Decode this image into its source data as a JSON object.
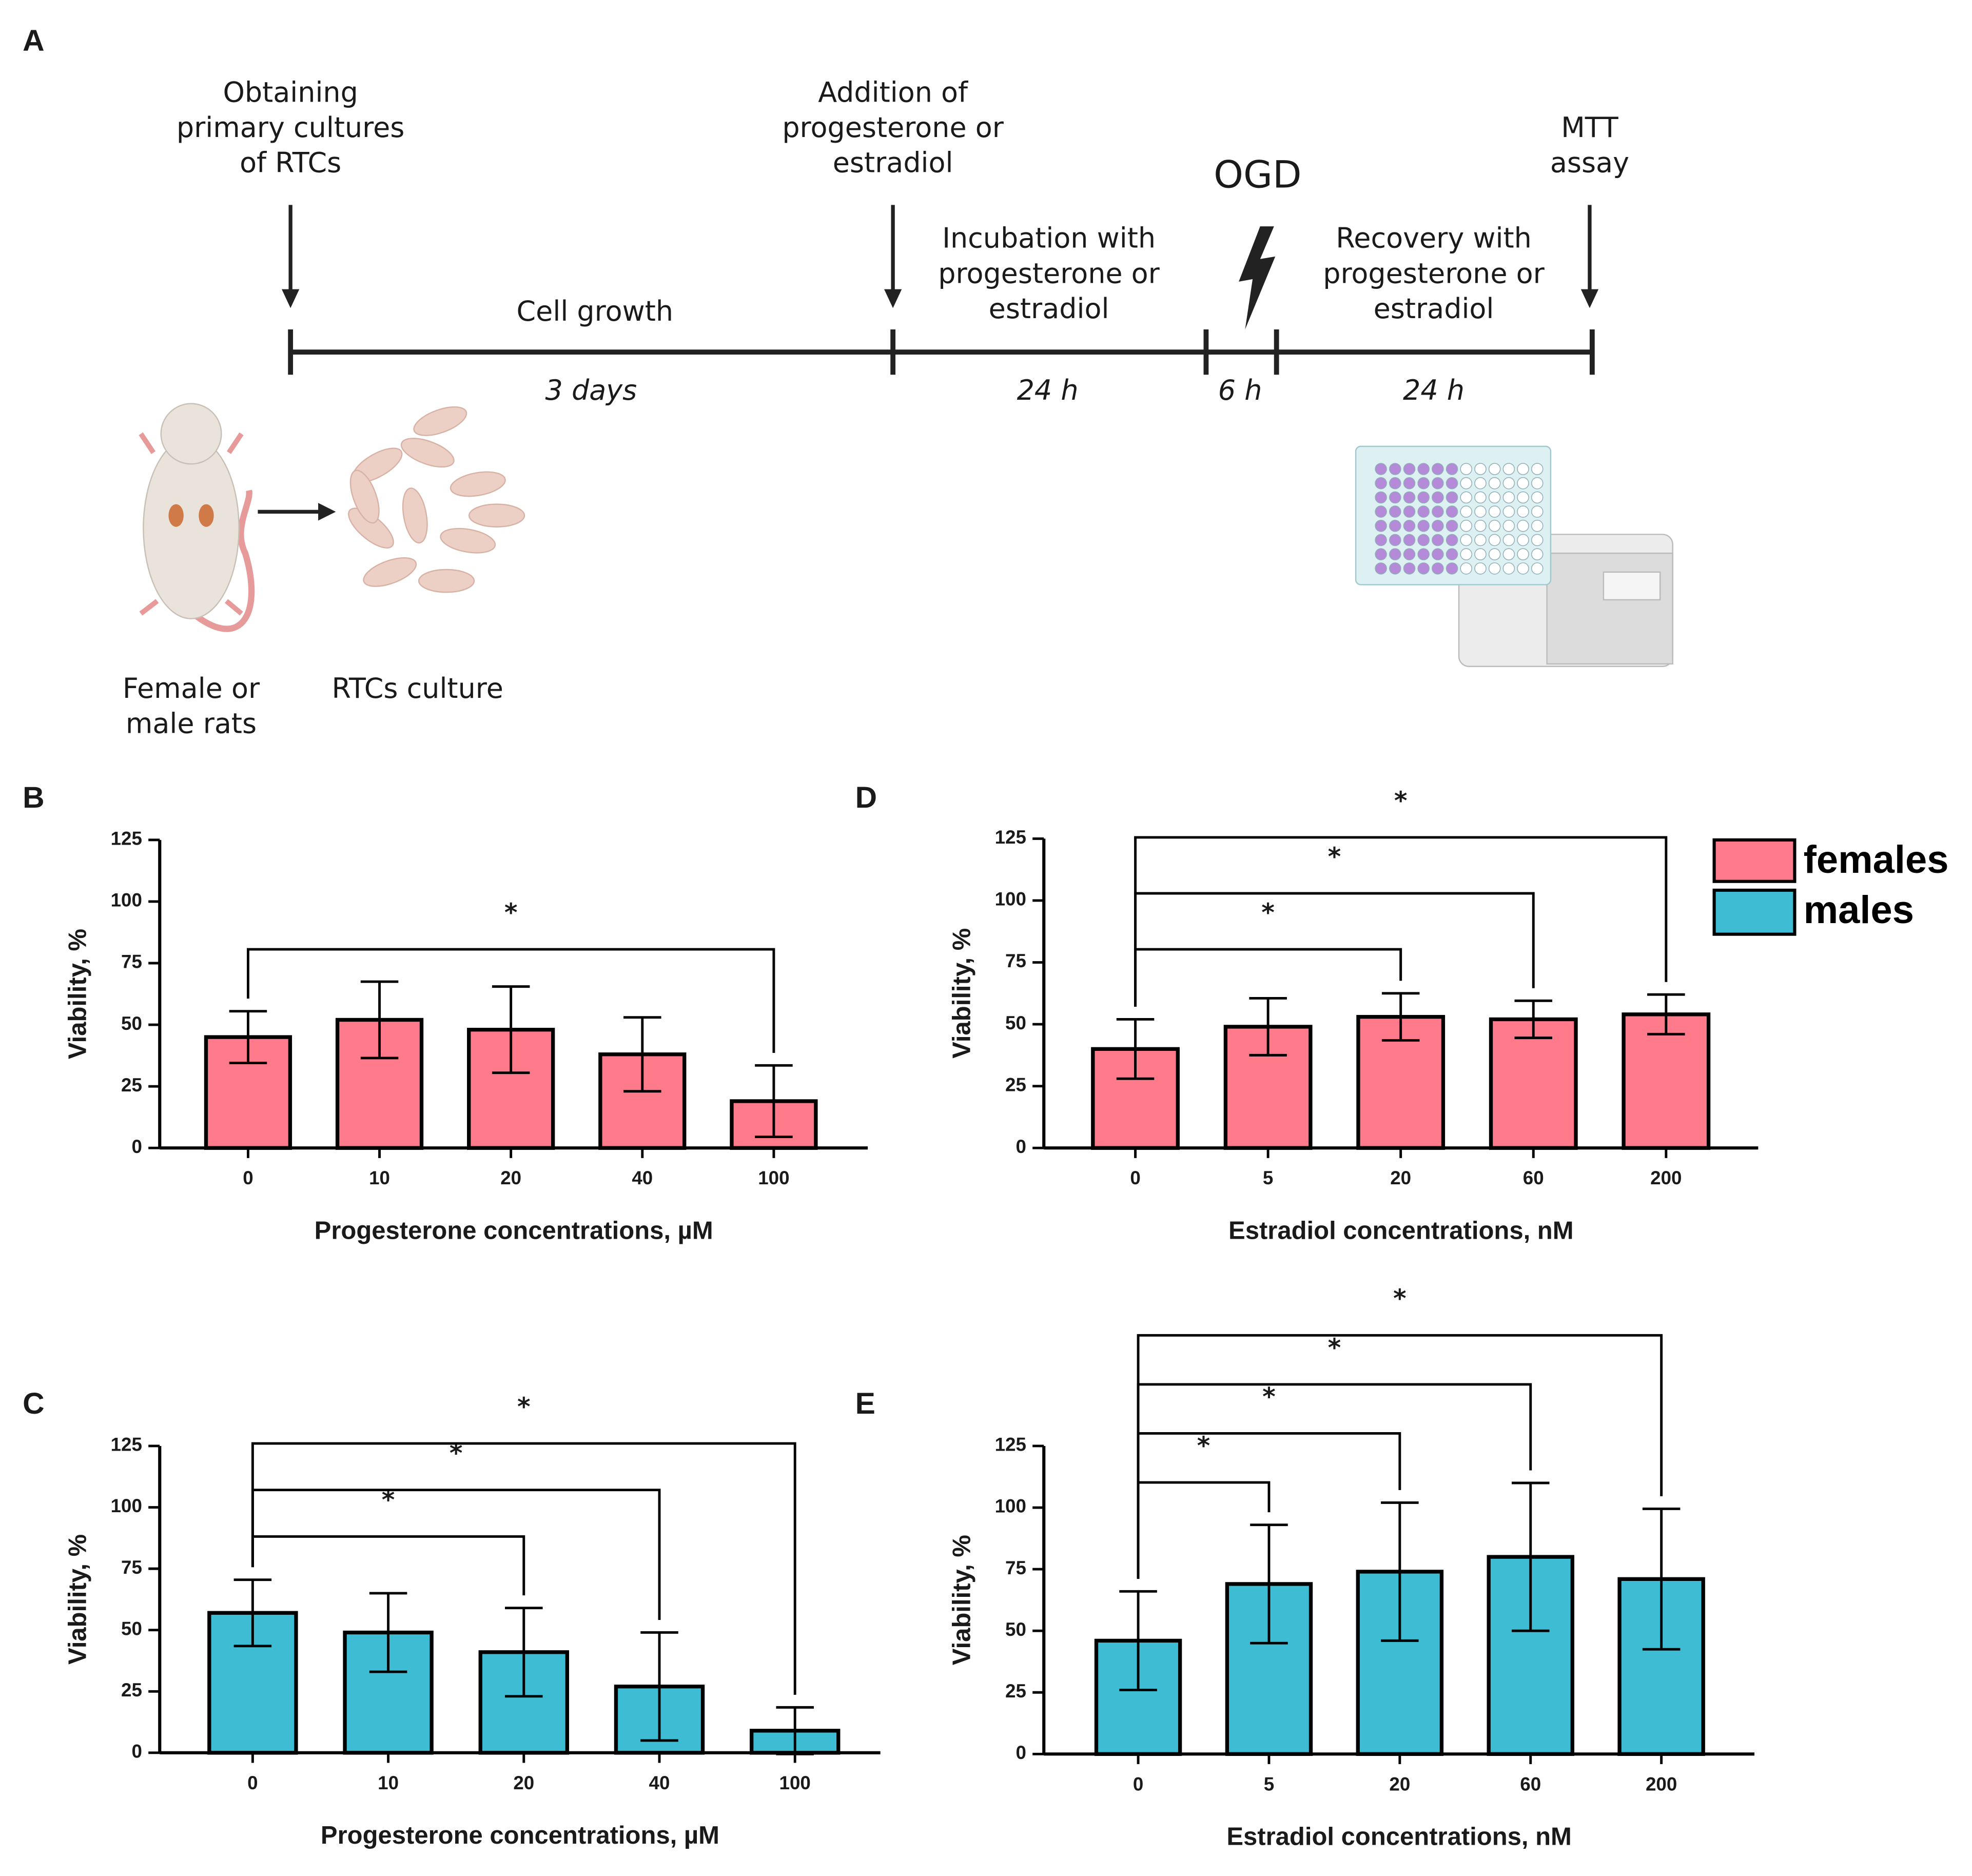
{
  "panel_a": {
    "label": "A",
    "events": [
      {
        "lines": [
          "Obtaining",
          "primary cultures",
          "of RTCs"
        ]
      },
      {
        "lines": [
          "Addition of",
          "progesterone or",
          "estradiol"
        ]
      },
      {
        "lines": [
          "MTT",
          "assay"
        ]
      }
    ],
    "phases": [
      {
        "lines": [
          "Cell growth"
        ],
        "duration": "3 days"
      },
      {
        "lines": [
          "Incubation with",
          "progesterone or",
          "estradiol"
        ],
        "duration": "24 h"
      },
      {
        "lines": [
          "OGD"
        ],
        "duration": "6 h"
      },
      {
        "lines": [
          "Recovery with",
          "progesterone or",
          "estradiol"
        ],
        "duration": "24 h"
      }
    ],
    "images": [
      {
        "lines": [
          "Female or",
          "male rats"
        ]
      },
      {
        "lines": [
          "RTCs culture"
        ]
      }
    ]
  },
  "chart_data": [
    {
      "type": "bar",
      "panel": "B",
      "x_label": "Progesterone concentrations, µM",
      "y_label": "Viability,  %",
      "categories": [
        "0",
        "10",
        "20",
        "40",
        "100"
      ],
      "series": [
        {
          "name": "females",
          "color": "#ff7b8b",
          "values": [
            45,
            52,
            48,
            38,
            19
          ],
          "errors": [
            10.5,
            15.5,
            17.5,
            15,
            14.5
          ]
        }
      ],
      "ylim": [
        0,
        125
      ],
      "yticks": [
        0,
        25,
        50,
        75,
        100,
        125
      ],
      "comparisons": [
        {
          "label": "*",
          "from": 0,
          "to": 4
        }
      ]
    },
    {
      "type": "bar",
      "panel": "C",
      "x_label": "Progesterone concentrations, µM",
      "y_label": "Viability,  %",
      "categories": [
        "0",
        "10",
        "20",
        "40",
        "100"
      ],
      "series": [
        {
          "name": "males",
          "color": "#3dbcd4",
          "values": [
            57,
            49,
            41,
            27,
            9
          ],
          "errors": [
            13.5,
            16,
            18,
            22,
            9.5
          ]
        }
      ],
      "ylim": [
        0,
        125
      ],
      "yticks": [
        0,
        25,
        50,
        75,
        100,
        125
      ],
      "comparisons": [
        {
          "label": "*",
          "from": 0,
          "to": 2
        },
        {
          "label": "*",
          "from": 0,
          "to": 3
        },
        {
          "label": "*",
          "from": 0,
          "to": 4
        }
      ]
    },
    {
      "type": "bar",
      "panel": "D",
      "x_label": "Estradiol concentrations, nM",
      "y_label": "Viability,  %",
      "categories": [
        "0",
        "5",
        "20",
        "60",
        "200"
      ],
      "series": [
        {
          "name": "females",
          "color": "#ff7b8b",
          "values": [
            40,
            49,
            53,
            52,
            54
          ],
          "errors": [
            12,
            11.5,
            9.5,
            7.5,
            8
          ]
        }
      ],
      "ylim": [
        0,
        125
      ],
      "yticks": [
        0,
        25,
        50,
        75,
        100,
        125
      ],
      "comparisons": [
        {
          "label": "*",
          "from": 0,
          "to": 2
        },
        {
          "label": "*",
          "from": 0,
          "to": 3
        },
        {
          "label": "*",
          "from": 0,
          "to": 4
        }
      ]
    },
    {
      "type": "bar",
      "panel": "E",
      "x_label": "Estradiol concentrations, nM",
      "y_label": "Viability,  %",
      "categories": [
        "0",
        "5",
        "20",
        "60",
        "200"
      ],
      "series": [
        {
          "name": "males",
          "color": "#3dbcd4",
          "values": [
            46,
            69,
            74,
            80,
            71
          ],
          "errors": [
            20,
            24,
            28,
            30,
            28.5
          ]
        }
      ],
      "ylim": [
        0,
        125
      ],
      "yticks": [
        0,
        25,
        50,
        75,
        100,
        125
      ],
      "comparisons": [
        {
          "label": "*",
          "from": 0,
          "to": 1
        },
        {
          "label": "*",
          "from": 0,
          "to": 2
        },
        {
          "label": "*",
          "from": 0,
          "to": 3
        },
        {
          "label": "*",
          "from": 0,
          "to": 4
        }
      ]
    }
  ]
}
